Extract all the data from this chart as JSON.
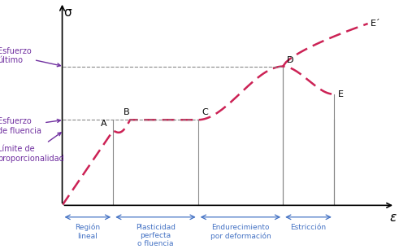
{
  "bg_color": "#ffffff",
  "curve_color": "#cc2255",
  "region_color": "#4472c4",
  "annotation_color": "#7030a0",
  "points": {
    "O": [
      0,
      0
    ],
    "A": [
      1.5,
      3.5
    ],
    "B": [
      2.0,
      4.0
    ],
    "C": [
      4.0,
      4.0
    ],
    "D": [
      6.5,
      6.5
    ],
    "E": [
      8.0,
      5.2
    ],
    "Eprime": [
      9.0,
      8.5
    ]
  },
  "y_fluencia": 4.0,
  "y_ultimo": 6.5,
  "y_proporcionalidad": 3.5,
  "xlim": [
    0,
    9.8
  ],
  "ylim": [
    0,
    9.5
  ],
  "sigma_label": "σ",
  "epsilon_label": "ε",
  "label_A": "A",
  "label_B": "B",
  "label_C": "C",
  "label_D": "D",
  "label_E": "E",
  "label_Eprime": "E´",
  "text_esfuerzo_ultimo": "Esfuerzo\núltimo",
  "text_esfuerzo_fluencia": "Esfuerzo\nde fluencia",
  "text_limite": "Límite de\nproporcionalidad",
  "region_labels": [
    "Región\nlineal",
    "Plasticidad\nperfecta\no fluencia",
    "Endurecimiento\npor deformación",
    "Estricción"
  ],
  "region_pairs": [
    [
      0,
      1.5
    ],
    [
      1.5,
      4.0
    ],
    [
      4.0,
      6.5
    ],
    [
      6.5,
      8.0
    ]
  ]
}
